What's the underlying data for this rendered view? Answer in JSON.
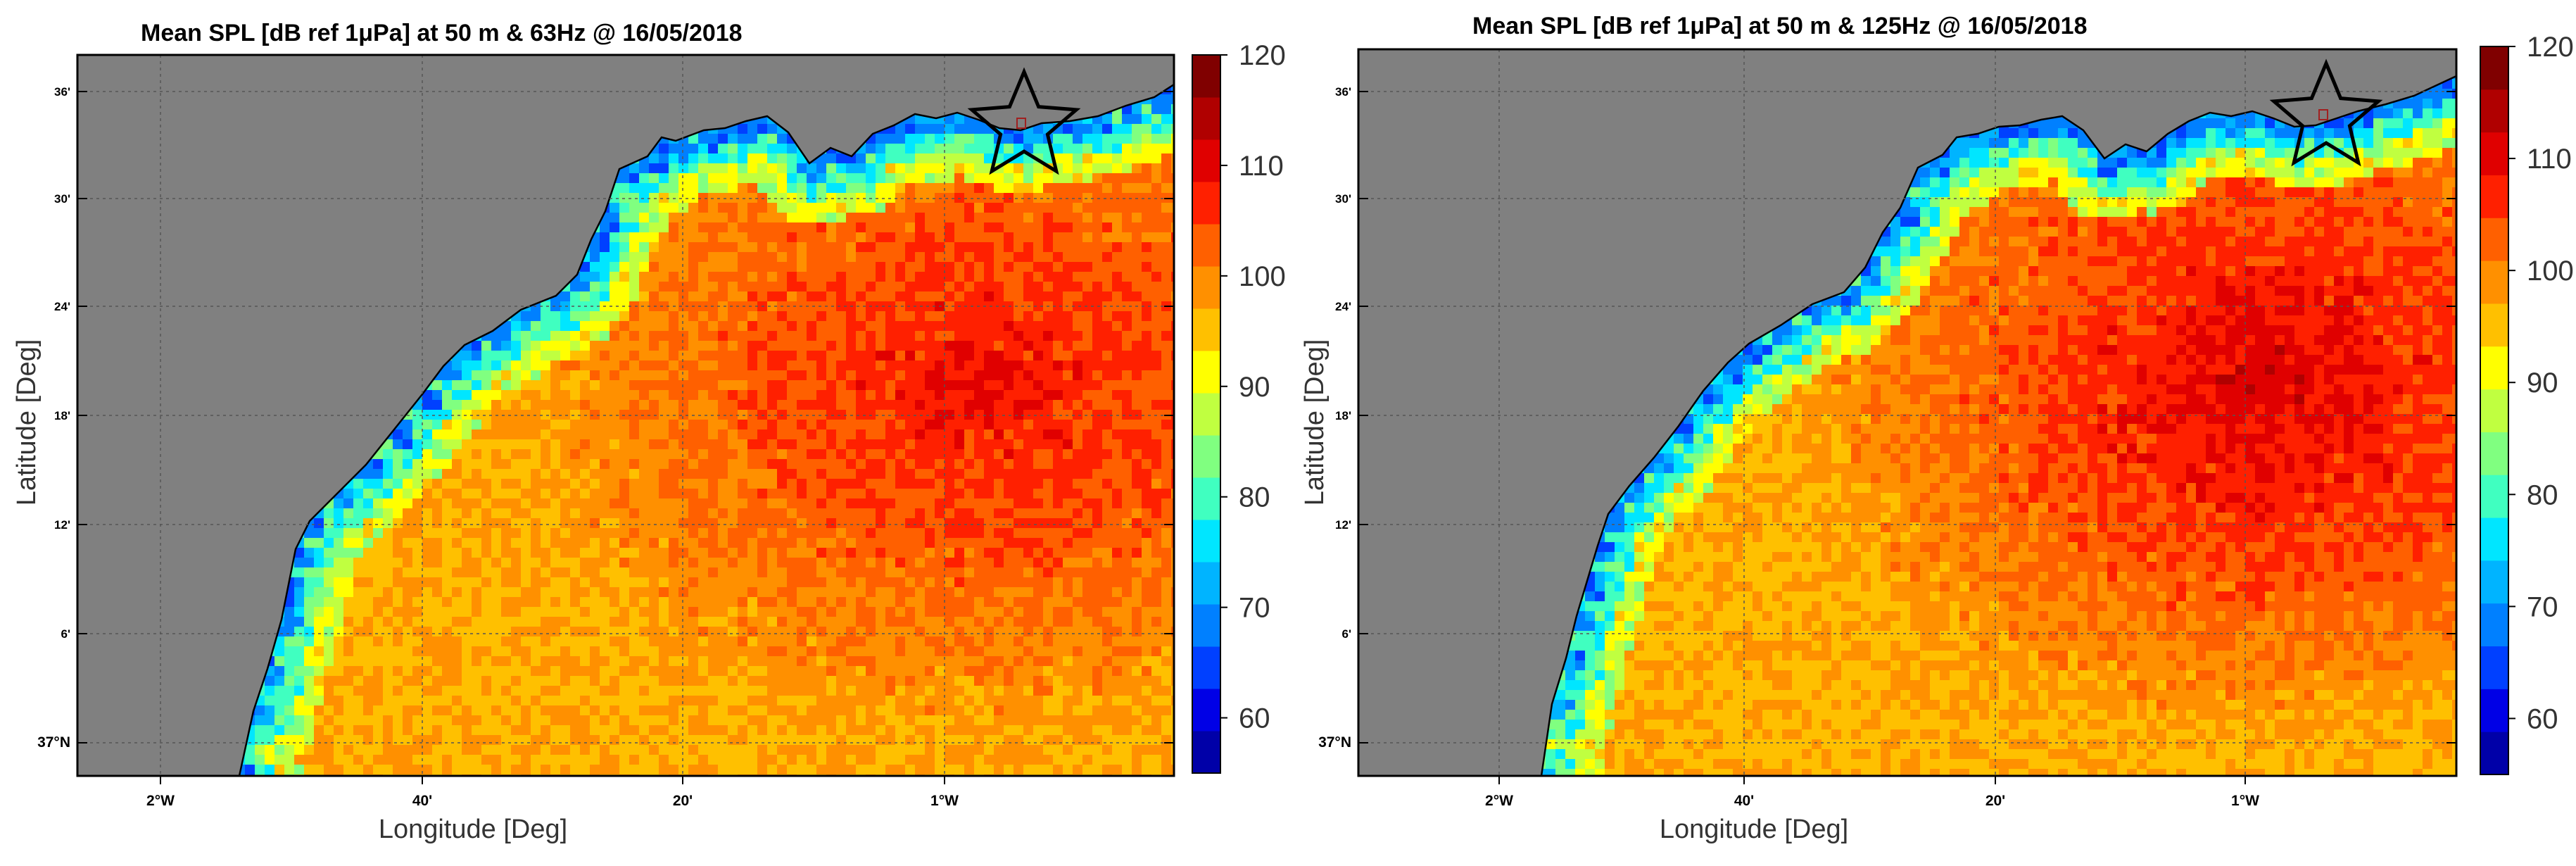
{
  "figure": {
    "panels": [
      {
        "title": "Mean SPL [dB ref 1μPa] at 50 m & 63Hz @ 16/05/2018",
        "xlabel": "Longitude [Deg]",
        "ylabel": "Latitude [Deg]",
        "lon_ticks": [
          "2°W",
          "40'",
          "20'",
          "1°W"
        ],
        "lat_ticks": [
          "37°N",
          "6'",
          "12'",
          "18'",
          "24'",
          "30'",
          "36'"
        ],
        "hotspot_level": 0.55
      },
      {
        "title": "Mean SPL [dB ref 1μPa] at 50 m & 125Hz @ 16/05/2018",
        "xlabel": "Longitude [Deg]",
        "ylabel": "Latitude [Deg]",
        "lon_ticks": [
          "2°W",
          "40'",
          "20'",
          "1°W"
        ],
        "lat_ticks": [
          "37°N",
          "6'",
          "12'",
          "18'",
          "24'",
          "30'",
          "36'"
        ],
        "hotspot_level": 0.85
      }
    ],
    "colorbar": {
      "min": 55,
      "max": 120,
      "labels": [
        "60",
        "70",
        "80",
        "90",
        "100",
        "110",
        "120"
      ],
      "colors": [
        "#0000a8",
        "#0000e6",
        "#0040ff",
        "#0080ff",
        "#00b4ff",
        "#00e6ff",
        "#40ffc0",
        "#80ff80",
        "#c0ff40",
        "#ffff00",
        "#ffc000",
        "#ff9000",
        "#ff6000",
        "#ff2000",
        "#e00000",
        "#b00000",
        "#800000"
      ]
    },
    "land_color": "#808080",
    "marker": "star-icon"
  }
}
